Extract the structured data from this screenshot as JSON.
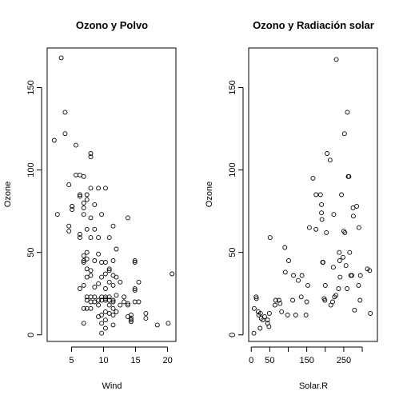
{
  "chart_data": [
    {
      "type": "scatter",
      "title": "Ozono y Polvo",
      "xlabel": "Wind",
      "ylabel": "Ozone",
      "xlim": [
        1.2,
        21.3
      ],
      "ylim": [
        -4,
        174
      ],
      "xticks": [
        5,
        10,
        15,
        20
      ],
      "yticks": [
        0,
        50,
        100,
        150
      ],
      "points": [
        [
          2.3,
          118
        ],
        [
          2.8,
          73
        ],
        [
          3.4,
          168
        ],
        [
          4.0,
          135
        ],
        [
          4.0,
          122
        ],
        [
          4.6,
          91
        ],
        [
          4.6,
          66
        ],
        [
          4.6,
          63
        ],
        [
          5.1,
          78
        ],
        [
          5.1,
          76
        ],
        [
          5.1,
          78
        ],
        [
          5.7,
          115
        ],
        [
          5.7,
          97
        ],
        [
          6.3,
          97
        ],
        [
          6.3,
          85
        ],
        [
          6.3,
          84
        ],
        [
          6.3,
          61
        ],
        [
          6.3,
          59
        ],
        [
          6.3,
          28
        ],
        [
          6.9,
          96
        ],
        [
          6.9,
          80
        ],
        [
          6.9,
          77
        ],
        [
          6.9,
          73
        ],
        [
          6.9,
          48
        ],
        [
          6.9,
          45
        ],
        [
          6.9,
          44
        ],
        [
          6.9,
          30
        ],
        [
          6.9,
          16
        ],
        [
          6.9,
          7
        ],
        [
          7.4,
          85
        ],
        [
          7.4,
          82
        ],
        [
          7.4,
          64
        ],
        [
          7.4,
          50
        ],
        [
          7.4,
          46
        ],
        [
          7.4,
          40
        ],
        [
          7.4,
          35
        ],
        [
          7.4,
          23
        ],
        [
          7.4,
          16
        ],
        [
          7.4,
          21
        ],
        [
          8.0,
          110
        ],
        [
          8.0,
          108
        ],
        [
          8.0,
          89
        ],
        [
          8.0,
          71
        ],
        [
          8.0,
          59
        ],
        [
          8.0,
          39
        ],
        [
          8.0,
          36
        ],
        [
          8.0,
          23
        ],
        [
          8.0,
          20
        ],
        [
          8.0,
          16
        ],
        [
          8.6,
          79
        ],
        [
          8.6,
          64
        ],
        [
          8.6,
          45
        ],
        [
          8.6,
          29
        ],
        [
          8.6,
          23
        ],
        [
          8.6,
          20
        ],
        [
          9.2,
          89
        ],
        [
          9.2,
          59
        ],
        [
          9.2,
          49
        ],
        [
          9.2,
          31
        ],
        [
          9.2,
          21
        ],
        [
          9.2,
          18
        ],
        [
          9.2,
          11
        ],
        [
          9.7,
          73
        ],
        [
          9.7,
          44
        ],
        [
          9.7,
          35
        ],
        [
          9.7,
          23
        ],
        [
          9.7,
          21
        ],
        [
          9.7,
          12
        ],
        [
          9.7,
          7
        ],
        [
          9.7,
          1
        ],
        [
          10.3,
          89
        ],
        [
          10.3,
          44
        ],
        [
          10.3,
          37
        ],
        [
          10.3,
          28
        ],
        [
          10.3,
          23
        ],
        [
          10.3,
          22
        ],
        [
          10.3,
          21
        ],
        [
          10.3,
          14
        ],
        [
          10.3,
          9
        ],
        [
          10.3,
          4
        ],
        [
          10.9,
          59
        ],
        [
          10.9,
          40
        ],
        [
          10.9,
          39
        ],
        [
          10.9,
          32
        ],
        [
          10.9,
          23
        ],
        [
          10.9,
          21
        ],
        [
          10.9,
          18
        ],
        [
          10.9,
          13
        ],
        [
          11.5,
          66
        ],
        [
          11.5,
          45
        ],
        [
          11.5,
          36
        ],
        [
          11.5,
          30
        ],
        [
          11.5,
          21
        ],
        [
          11.5,
          20
        ],
        [
          11.5,
          16
        ],
        [
          11.5,
          12
        ],
        [
          11.5,
          6
        ],
        [
          12.0,
          52
        ],
        [
          12.0,
          35
        ],
        [
          12.0,
          24
        ],
        [
          12.0,
          14
        ],
        [
          12.6,
          32
        ],
        [
          12.6,
          18
        ],
        [
          13.2,
          23
        ],
        [
          13.2,
          20
        ],
        [
          13.8,
          71
        ],
        [
          13.8,
          18
        ],
        [
          13.8,
          19
        ],
        [
          13.8,
          11
        ],
        [
          14.3,
          9
        ],
        [
          14.3,
          8
        ],
        [
          14.3,
          10
        ],
        [
          14.3,
          12
        ],
        [
          14.9,
          45
        ],
        [
          14.9,
          44
        ],
        [
          14.9,
          28
        ],
        [
          14.9,
          27
        ],
        [
          14.9,
          20
        ],
        [
          15.5,
          32
        ],
        [
          15.5,
          20
        ],
        [
          16.6,
          13
        ],
        [
          16.6,
          10
        ],
        [
          18.4,
          6
        ],
        [
          20.1,
          7
        ],
        [
          20.7,
          37
        ]
      ]
    },
    {
      "type": "scatter",
      "title": "Ozono y Radiación solar",
      "xlabel": "Solar.R",
      "ylabel": "Ozone",
      "xlim": [
        -7,
        341
      ],
      "ylim": [
        -4,
        174
      ],
      "xticks": [
        0,
        50,
        100,
        150,
        200,
        250,
        300
      ],
      "xtick_labels": [
        "0",
        "50",
        "",
        "150",
        "",
        "250",
        ""
      ],
      "yticks": [
        0,
        50,
        100,
        150
      ],
      "points": [
        [
          7,
          1
        ],
        [
          8,
          16
        ],
        [
          13,
          23
        ],
        [
          14,
          22
        ],
        [
          19,
          14
        ],
        [
          20,
          12
        ],
        [
          24,
          4
        ],
        [
          25,
          13
        ],
        [
          27,
          10
        ],
        [
          31,
          9
        ],
        [
          36,
          11
        ],
        [
          44,
          9
        ],
        [
          44,
          7
        ],
        [
          48,
          5
        ],
        [
          49,
          13
        ],
        [
          51,
          59
        ],
        [
          64,
          18
        ],
        [
          66,
          21
        ],
        [
          75,
          21
        ],
        [
          78,
          19
        ],
        [
          82,
          14
        ],
        [
          91,
          53
        ],
        [
          92,
          38
        ],
        [
          98,
          12
        ],
        [
          101,
          45
        ],
        [
          112,
          21
        ],
        [
          114,
          36
        ],
        [
          120,
          12
        ],
        [
          127,
          33
        ],
        [
          135,
          23
        ],
        [
          137,
          36
        ],
        [
          148,
          12
        ],
        [
          150,
          20
        ],
        [
          153,
          30
        ],
        [
          157,
          65
        ],
        [
          167,
          95
        ],
        [
          175,
          64
        ],
        [
          175,
          85
        ],
        [
          187,
          85
        ],
        [
          190,
          79
        ],
        [
          190,
          74
        ],
        [
          191,
          70
        ],
        [
          193,
          44
        ],
        [
          194,
          44
        ],
        [
          197,
          22
        ],
        [
          199,
          21
        ],
        [
          200,
          30
        ],
        [
          203,
          62
        ],
        [
          205,
          110
        ],
        [
          213,
          106
        ],
        [
          215,
          18
        ],
        [
          220,
          20
        ],
        [
          222,
          41
        ],
        [
          223,
          73
        ],
        [
          225,
          23
        ],
        [
          229,
          24
        ],
        [
          230,
          167
        ],
        [
          236,
          28
        ],
        [
          238,
          50
        ],
        [
          239,
          45
        ],
        [
          240,
          35
        ],
        [
          244,
          85
        ],
        [
          248,
          47
        ],
        [
          250,
          63
        ],
        [
          252,
          122
        ],
        [
          253,
          62
        ],
        [
          256,
          42
        ],
        [
          259,
          28
        ],
        [
          260,
          135
        ],
        [
          262,
          96
        ],
        [
          264,
          96
        ],
        [
          266,
          50
        ],
        [
          269,
          36
        ],
        [
          272,
          36
        ],
        [
          275,
          77
        ],
        [
          276,
          72
        ],
        [
          279,
          15
        ],
        [
          285,
          78
        ],
        [
          290,
          30
        ],
        [
          291,
          65
        ],
        [
          294,
          21
        ],
        [
          295,
          36
        ],
        [
          314,
          40
        ],
        [
          320,
          39
        ],
        [
          322,
          13
        ]
      ]
    }
  ]
}
